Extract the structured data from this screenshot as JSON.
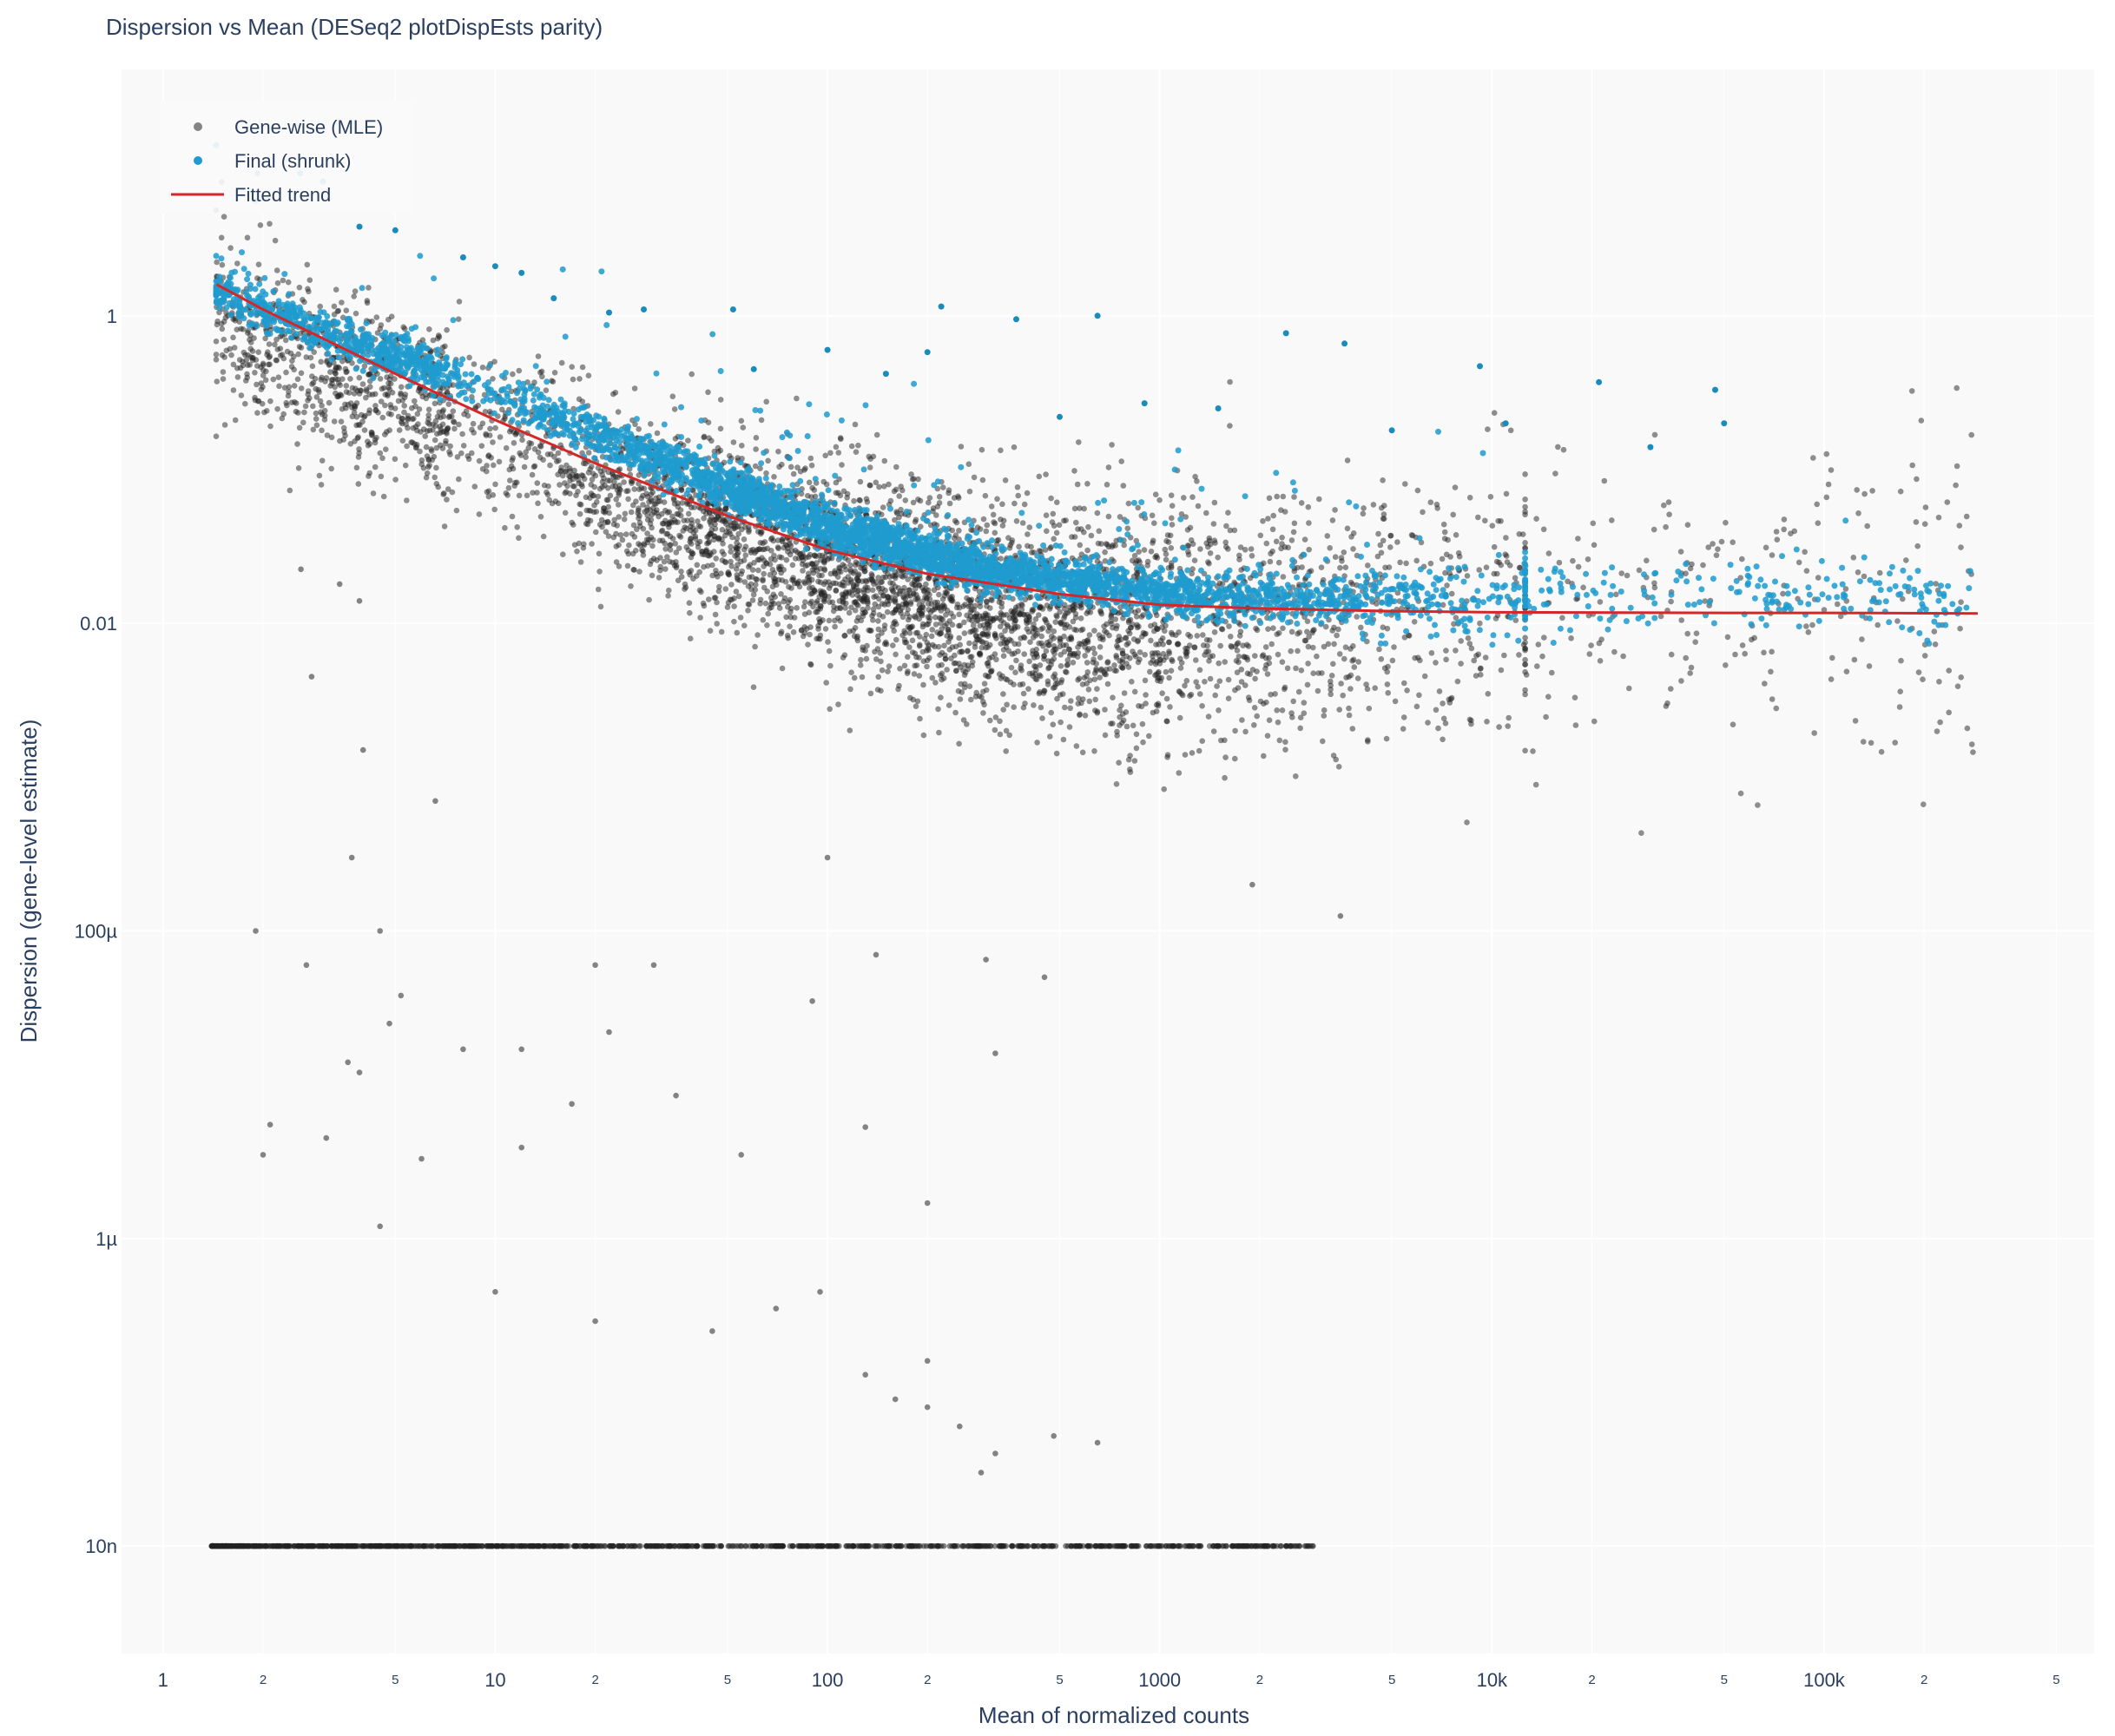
{
  "chart_data": {
    "type": "scatter",
    "title": "Dispersion vs Mean (DESeq2 plotDispEsts parity)",
    "xlabel": "Mean of normalized counts",
    "ylabel": "Dispersion (gene-level estimate)",
    "x_scale": "log",
    "y_scale": "log",
    "xlim": [
      0.75,
      650000
    ],
    "ylim": [
      2e-09,
      40
    ],
    "x_major_ticks": [
      {
        "value": 1,
        "label": "1"
      },
      {
        "value": 10,
        "label": "10"
      },
      {
        "value": 100,
        "label": "100"
      },
      {
        "value": 1000,
        "label": "1000"
      },
      {
        "value": 10000,
        "label": "10k"
      },
      {
        "value": 100000,
        "label": "100k"
      }
    ],
    "x_minor_ticks": [
      {
        "value": 2,
        "label": "2"
      },
      {
        "value": 5,
        "label": "5"
      },
      {
        "value": 20,
        "label": "2"
      },
      {
        "value": 50,
        "label": "5"
      },
      {
        "value": 200,
        "label": "2"
      },
      {
        "value": 500,
        "label": "5"
      },
      {
        "value": 2000,
        "label": "2"
      },
      {
        "value": 5000,
        "label": "5"
      },
      {
        "value": 20000,
        "label": "2"
      },
      {
        "value": 50000,
        "label": "5"
      },
      {
        "value": 200000,
        "label": "2"
      },
      {
        "value": 500000,
        "label": "5"
      }
    ],
    "y_major_ticks": [
      {
        "value": 1,
        "label": "1"
      },
      {
        "value": 0.01,
        "label": "0.01"
      },
      {
        "value": 0.0001,
        "label": "100µ"
      },
      {
        "value": 1e-06,
        "label": "1µ"
      },
      {
        "value": 1e-08,
        "label": "10n"
      }
    ],
    "grid": true,
    "legend_position": "top-left",
    "series": [
      {
        "name": "Gene-wise (MLE)",
        "marker": "circle",
        "color": "#222222",
        "trend_anchor_x": [
          1.45,
          3,
          10,
          30,
          100,
          300,
          1000,
          3000,
          10000,
          30000,
          100000,
          290000
        ],
        "trend_anchor_y": [
          1.0,
          0.5,
          0.17,
          0.06,
          0.025,
          0.012,
          0.009,
          0.011,
          0.013,
          0.014,
          0.015,
          0.015
        ],
        "zero_dispersion_floor": {
          "y": 1e-08,
          "x_range": [
            1.4,
            2900
          ]
        },
        "outliers": [
          {
            "x": 1.9,
            "y": 0.0001
          },
          {
            "x": 4.5,
            "y": 0.0001
          },
          {
            "x": 2.7,
            "y": 6e-05
          },
          {
            "x": 5.2,
            "y": 3.8e-05
          },
          {
            "x": 4.8,
            "y": 2.5e-05
          },
          {
            "x": 20,
            "y": 6e-05
          },
          {
            "x": 30,
            "y": 6e-05
          },
          {
            "x": 140,
            "y": 7e-05
          },
          {
            "x": 300,
            "y": 6.5e-05
          },
          {
            "x": 450,
            "y": 5e-05
          },
          {
            "x": 90,
            "y": 3.5e-05
          },
          {
            "x": 320,
            "y": 1.6e-05
          },
          {
            "x": 8,
            "y": 1.7e-05
          },
          {
            "x": 12,
            "y": 1.7e-05
          },
          {
            "x": 2.1,
            "y": 5.5e-06
          },
          {
            "x": 3.1,
            "y": 4.5e-06
          },
          {
            "x": 3.9,
            "y": 1.2e-05
          },
          {
            "x": 6,
            "y": 3.3e-06
          },
          {
            "x": 17,
            "y": 7.5e-06
          },
          {
            "x": 22,
            "y": 2.2e-05
          },
          {
            "x": 35,
            "y": 8.5e-06
          },
          {
            "x": 55,
            "y": 3.5e-06
          },
          {
            "x": 130,
            "y": 5.3e-06
          },
          {
            "x": 200,
            "y": 1.7e-06
          },
          {
            "x": 2.0,
            "y": 3.5e-06
          },
          {
            "x": 4.5,
            "y": 1.2e-06
          },
          {
            "x": 10,
            "y": 4.5e-07
          },
          {
            "x": 20,
            "y": 2.9e-07
          },
          {
            "x": 45,
            "y": 2.5e-07
          },
          {
            "x": 70,
            "y": 3.5e-07
          },
          {
            "x": 95,
            "y": 4.5e-07
          },
          {
            "x": 130,
            "y": 1.3e-07
          },
          {
            "x": 160,
            "y": 9e-08
          },
          {
            "x": 200,
            "y": 8e-08
          },
          {
            "x": 250,
            "y": 6e-08
          },
          {
            "x": 320,
            "y": 4e-08
          },
          {
            "x": 480,
            "y": 5.2e-08
          },
          {
            "x": 650,
            "y": 4.7e-08
          },
          {
            "x": 290,
            "y": 3e-08
          },
          {
            "x": 200,
            "y": 1.6e-07
          },
          {
            "x": 3.6,
            "y": 1.4e-05
          },
          {
            "x": 12,
            "y": 3.9e-06
          },
          {
            "x": 2.6,
            "y": 0.0225
          },
          {
            "x": 3.4,
            "y": 0.018
          },
          {
            "x": 3.9,
            "y": 0.014
          },
          {
            "x": 2.8,
            "y": 0.0045
          },
          {
            "x": 4.0,
            "y": 0.0015
          },
          {
            "x": 3.7,
            "y": 0.0003
          },
          {
            "x": 6.6,
            "y": 0.0007
          },
          {
            "x": 100,
            "y": 0.0003
          },
          {
            "x": 3500,
            "y": 0.000125
          },
          {
            "x": 1900,
            "y": 0.0002
          }
        ]
      },
      {
        "name": "Final (shrunk)",
        "marker": "circle",
        "color": "#1f9bcf",
        "trend_anchor_x": [
          1.45,
          3,
          10,
          30,
          100,
          300,
          1000,
          3000,
          10000,
          30000,
          100000,
          290000
        ],
        "trend_anchor_y": [
          1.5,
          0.8,
          0.32,
          0.12,
          0.042,
          0.022,
          0.016,
          0.014,
          0.0145,
          0.0145,
          0.0145,
          0.0145
        ],
        "outliers": [
          {
            "x": 3.9,
            "y": 3.8
          },
          {
            "x": 5.0,
            "y": 3.6
          },
          {
            "x": 8.0,
            "y": 2.4
          },
          {
            "x": 10,
            "y": 2.1
          },
          {
            "x": 12,
            "y": 1.9
          },
          {
            "x": 15,
            "y": 1.3
          },
          {
            "x": 22,
            "y": 1.05
          },
          {
            "x": 28,
            "y": 1.1
          },
          {
            "x": 52,
            "y": 1.1
          },
          {
            "x": 220,
            "y": 1.15
          },
          {
            "x": 370,
            "y": 0.95
          },
          {
            "x": 650,
            "y": 1.0
          },
          {
            "x": 2400,
            "y": 0.77
          },
          {
            "x": 3600,
            "y": 0.66
          },
          {
            "x": 9200,
            "y": 0.47
          },
          {
            "x": 21000,
            "y": 0.37
          },
          {
            "x": 47000,
            "y": 0.33
          },
          {
            "x": 200,
            "y": 0.58
          },
          {
            "x": 100,
            "y": 0.6
          },
          {
            "x": 60,
            "y": 0.45
          },
          {
            "x": 150,
            "y": 0.42
          },
          {
            "x": 900,
            "y": 0.27
          },
          {
            "x": 1500,
            "y": 0.25
          },
          {
            "x": 5000,
            "y": 0.18
          },
          {
            "x": 11000,
            "y": 0.2
          },
          {
            "x": 30000,
            "y": 0.14
          },
          {
            "x": 50000,
            "y": 0.2
          },
          {
            "x": 500,
            "y": 0.22
          }
        ]
      },
      {
        "name": "Fitted trend",
        "marker": "line",
        "color": "#d62728",
        "x": [
          1.45,
          2,
          3,
          5,
          10,
          20,
          50,
          100,
          200,
          500,
          1000,
          2000,
          5000,
          10000,
          50000,
          100000,
          290000
        ],
        "y": [
          1.6,
          1.1,
          0.72,
          0.42,
          0.21,
          0.11,
          0.05,
          0.03,
          0.021,
          0.0155,
          0.0132,
          0.0125,
          0.012,
          0.0118,
          0.0117,
          0.0117,
          0.0116
        ]
      }
    ]
  }
}
